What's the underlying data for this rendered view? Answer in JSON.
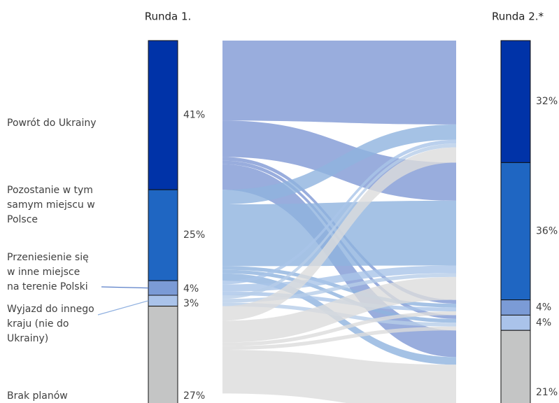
{
  "chart_data": {
    "type": "sankey",
    "columns": [
      {
        "title": "Runda 1.",
        "values": [
          41,
          25,
          4,
          3,
          27
        ],
        "value_labels": [
          "41%",
          "25%",
          "4%",
          "3%",
          "27%"
        ]
      },
      {
        "title": "Runda 2.*",
        "values": [
          32,
          36,
          4,
          4,
          21
        ],
        "value_labels": [
          "32%",
          "36%",
          "4%",
          "4%",
          "21%"
        ]
      }
    ],
    "categories": [
      [
        "Powrót do Ukrainy"
      ],
      [
        "Pozostanie w tym",
        "samym miejscu w",
        "Polsce"
      ],
      [
        "Przeniesienie się",
        "w inne miejsce",
        "na terenie Polski"
      ],
      [
        "Wyjazd do innego",
        "kraju (nie do",
        "Ukrainy)"
      ],
      [
        "Brak planów"
      ]
    ],
    "colors": [
      "#0033a8",
      "#1f66c2",
      "#7b9bd6",
      "#aac3ea",
      "#c4c5c5"
    ],
    "flow_colors": [
      "#7f98d4",
      "#8fb3df",
      "#a9c4e8",
      "#b7cde9",
      "#dcdcdc"
    ],
    "flows": [
      {
        "from": 0,
        "to": 0,
        "value": 22
      },
      {
        "from": 0,
        "to": 1,
        "value": 10
      },
      {
        "from": 0,
        "to": 2,
        "value": 1
      },
      {
        "from": 0,
        "to": 3,
        "value": 1
      },
      {
        "from": 0,
        "to": 4,
        "value": 7
      },
      {
        "from": 1,
        "to": 0,
        "value": 4
      },
      {
        "from": 1,
        "to": 1,
        "value": 17
      },
      {
        "from": 1,
        "to": 2,
        "value": 1
      },
      {
        "from": 1,
        "to": 3,
        "value": 1
      },
      {
        "from": 1,
        "to": 4,
        "value": 2
      },
      {
        "from": 2,
        "to": 0,
        "value": 1
      },
      {
        "from": 2,
        "to": 1,
        "value": 2
      },
      {
        "from": 2,
        "to": 2,
        "value": 1
      },
      {
        "from": 3,
        "to": 0,
        "value": 1
      },
      {
        "from": 3,
        "to": 1,
        "value": 1
      },
      {
        "from": 3,
        "to": 3,
        "value": 1
      },
      {
        "from": 4,
        "to": 0,
        "value": 4
      },
      {
        "from": 4,
        "to": 1,
        "value": 6
      },
      {
        "from": 4,
        "to": 2,
        "value": 1
      },
      {
        "from": 4,
        "to": 3,
        "value": 1
      },
      {
        "from": 4,
        "to": 4,
        "value": 12
      }
    ]
  }
}
